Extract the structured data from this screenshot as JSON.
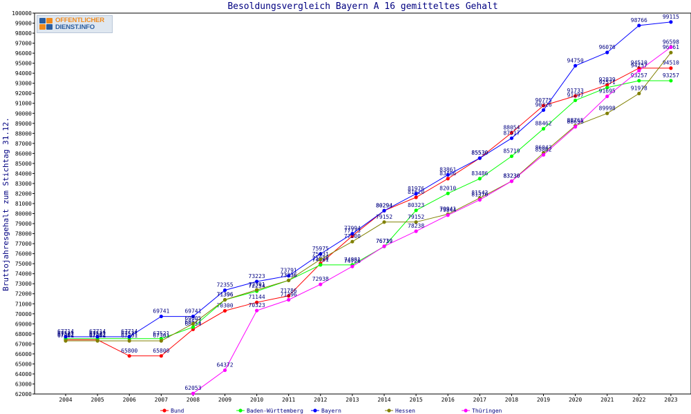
{
  "chart_data": {
    "type": "line",
    "title": "Besoldungsvergleich Bayern A 16 gemitteltes Gehalt",
    "xlabel": "",
    "ylabel": "Bruttojahresgehalt zum Stichtag 31.12.",
    "x": [
      2004,
      2005,
      2006,
      2007,
      2008,
      2009,
      2010,
      2011,
      2012,
      2013,
      2014,
      2015,
      2016,
      2017,
      2018,
      2019,
      2020,
      2021,
      2022,
      2023
    ],
    "ylim": [
      62000,
      100000
    ],
    "ytick_step": 1000,
    "grid": false,
    "legend_position": "bottom",
    "series": [
      {
        "name": "Bund",
        "color": "#ff0000",
        "values": [
          67402,
          67402,
          65800,
          65800,
          68454,
          70300,
          71144,
          71786,
          75020,
          77773,
          80294,
          81620,
          83486,
          85530,
          88054,
          90775,
          91733,
          92839,
          94510,
          94510
        ]
      },
      {
        "name": "Baden-Württemberg",
        "color": "#00ff00",
        "values": [
          67521,
          67521,
          67521,
          67521,
          68671,
          71396,
          72254,
          73336,
          74881,
          74881,
          76719,
          80323,
          82010,
          83486,
          85719,
          88462,
          91297,
          92571,
          93257,
          93257
        ]
      },
      {
        "name": "Bayern",
        "color": "#0000ff",
        "values": [
          67714,
          67714,
          67714,
          69741,
          69741,
          72355,
          73223,
          73791,
          75975,
          77994,
          80294,
          81976,
          83861,
          85530,
          87517,
          90326,
          94750,
          96076,
          98766,
          99115
        ]
      },
      {
        "name": "Hessen",
        "color": "#808000",
        "values": [
          67301,
          67301,
          67301,
          67301,
          69005,
          71396,
          72391,
          73336,
          75431,
          77200,
          79152,
          79152,
          79941,
          81542,
          83230,
          86043,
          88765,
          89998,
          91978,
          96061
        ]
      },
      {
        "name": "Thüringen",
        "color": "#ff00ff",
        "values": [
          null,
          null,
          null,
          null,
          62053,
          64372,
          70323,
          71396,
          72938,
          74726,
          76739,
          78238,
          79844,
          81370,
          83230,
          85862,
          88656,
          91695,
          94257,
          96598
        ]
      }
    ]
  },
  "logo": {
    "line1": "OFFENTLICHER",
    "line2": "DIENST.INFO"
  }
}
